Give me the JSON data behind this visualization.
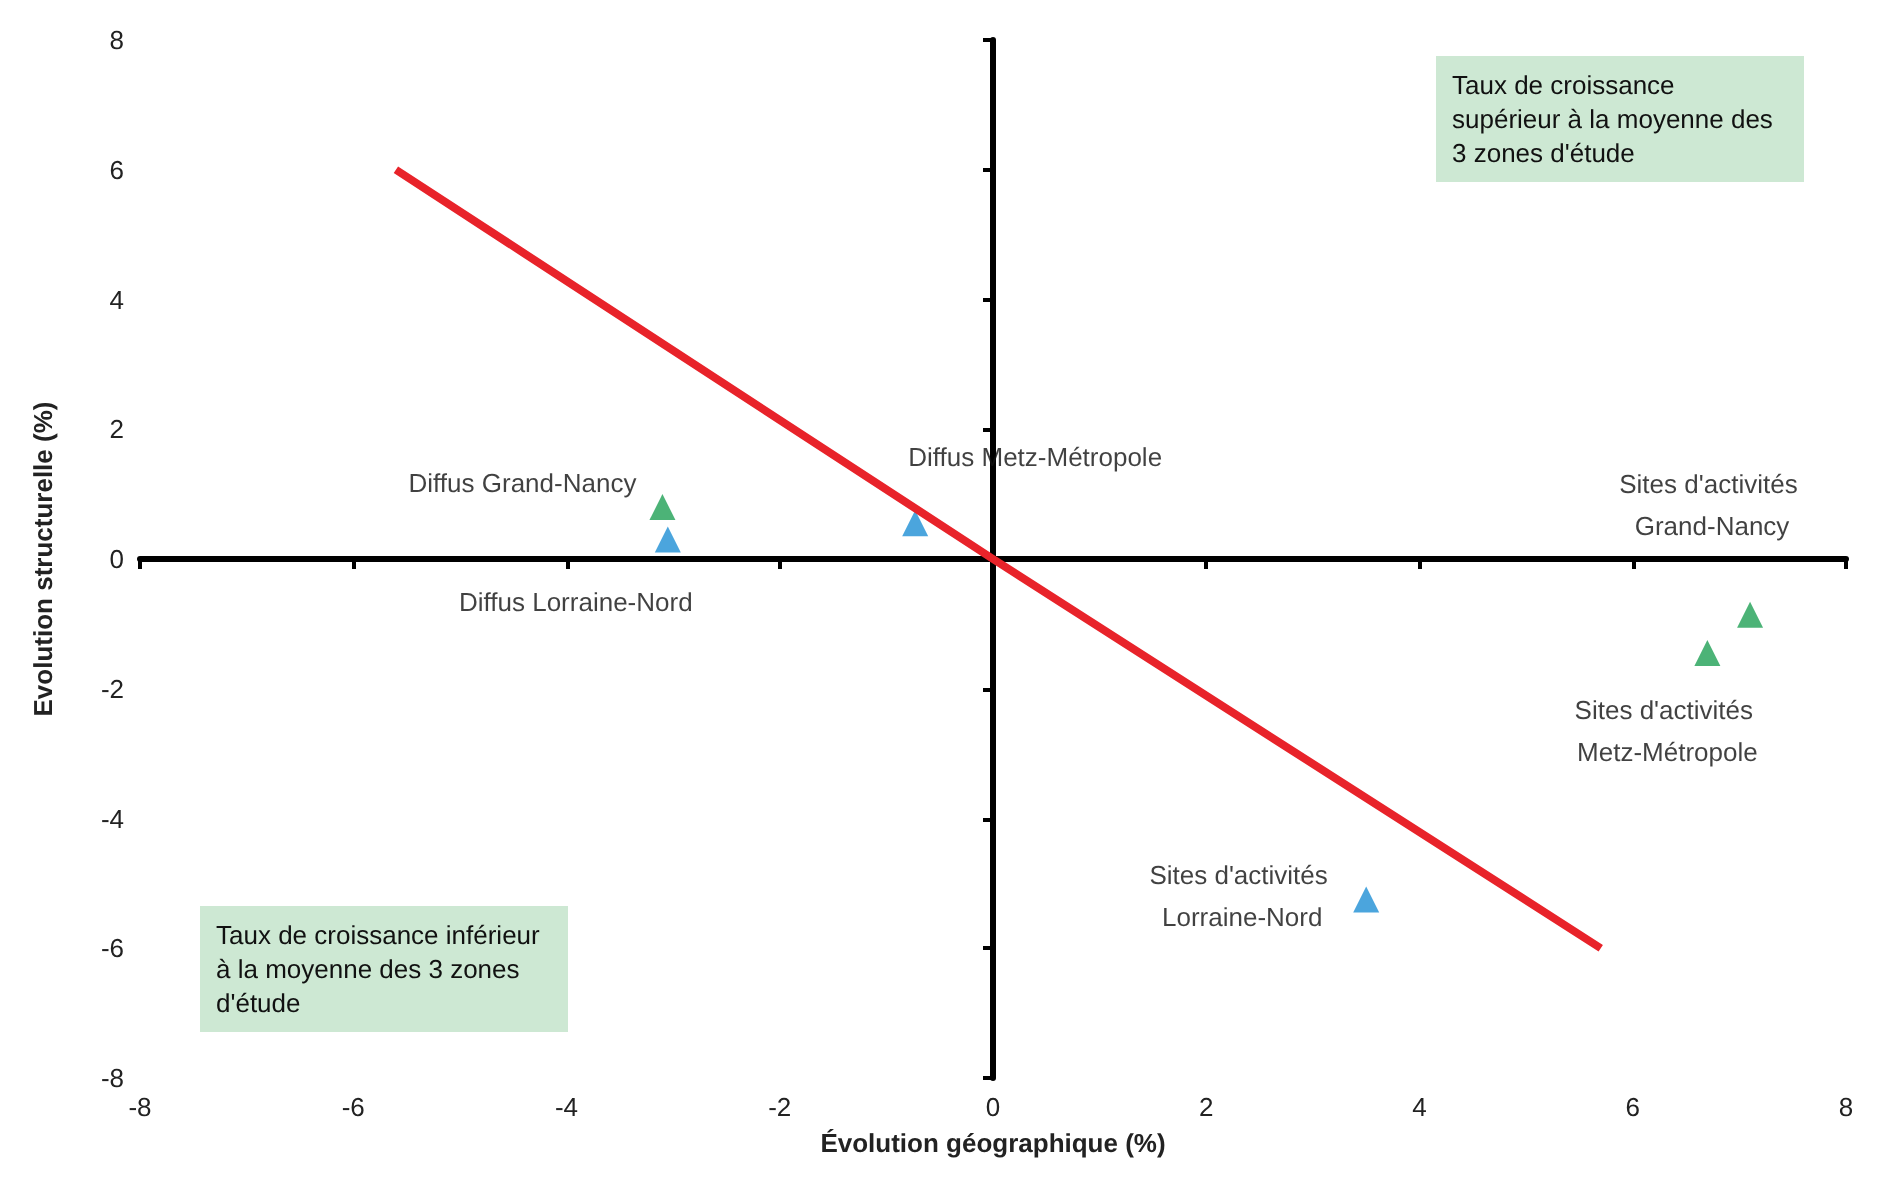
{
  "chart_data": {
    "type": "scatter",
    "xlabel": "Évolution géographique (%)",
    "ylabel": "Evolution structurelle (%)",
    "xlim": [
      -8,
      8
    ],
    "xticks": [
      -8,
      -6,
      -4,
      -2,
      0,
      2,
      4,
      6,
      8
    ],
    "ylim": [
      -8,
      8
    ],
    "yticks": [
      -8,
      -6,
      -4,
      -2,
      0,
      2,
      4,
      6,
      8
    ],
    "marker": "triangle",
    "series": [
      {
        "color": "#1fa055",
        "x": [
          -3.1,
          7.1,
          6.7
        ],
        "values": [
          0.8,
          -0.86,
          -1.45
        ],
        "value_labels": [
          "Diffus Grand-Nancy",
          "Sites d'activités Grand-Nancy",
          "Sites d'activités Metz-Métropole"
        ]
      },
      {
        "color": "#1e8fd5",
        "x": [
          -3.05,
          -0.73,
          3.5
        ],
        "values": [
          0.3,
          0.55,
          -5.25
        ],
        "value_labels": [
          "Diffus Lorraine-Nord",
          "Diffus Metz-Métropole",
          "Sites d'activités Lorraine-Nord"
        ]
      },
      {
        "type": "line",
        "color": "#e8232a",
        "marker": "none",
        "line_style": "solid",
        "x": [
          -5.6,
          0,
          5.7
        ],
        "values": [
          6,
          0,
          -6
        ]
      }
    ],
    "annotations": [
      "Taux de croissance supérieur à la moyenne des 3 zones d'étude",
      "Taux de croissance inférieur à la moyenne des 3 zones d'étude"
    ]
  }
}
